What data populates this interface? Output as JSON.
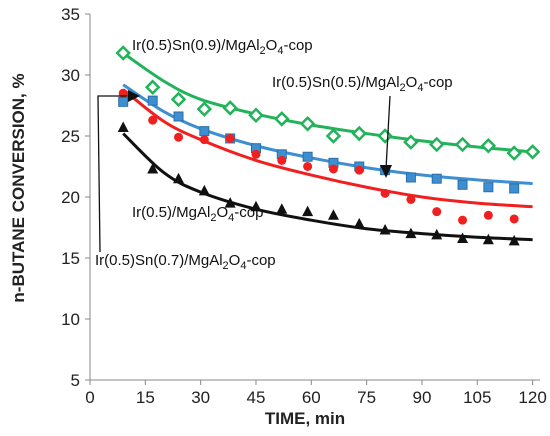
{
  "chart_data": {
    "type": "scatter",
    "xlabel": "TIME, min",
    "ylabel": "n-BUTANE CONVERSION, %",
    "xlim": [
      0,
      122
    ],
    "ylim": [
      5,
      35
    ],
    "x_ticks": [
      "0",
      "15",
      "30",
      "45",
      "60",
      "75",
      "90",
      "105",
      "120"
    ],
    "y_ticks": [
      "5",
      "10",
      "15",
      "20",
      "25",
      "30",
      "35"
    ],
    "grid": false,
    "series": [
      {
        "name": "Ir(0.5)Sn(0.9)/MgAl2O4-cop",
        "marker": "diamond",
        "color": "#22b35a",
        "x": [
          9,
          17,
          24,
          31,
          38,
          45,
          52,
          59,
          66,
          73,
          80,
          87,
          94,
          101,
          108,
          115,
          120
        ],
        "y": [
          31.8,
          29.0,
          28.0,
          27.2,
          27.3,
          26.7,
          26.4,
          26.0,
          25.0,
          25.2,
          25.0,
          24.5,
          24.3,
          24.3,
          24.2,
          23.6,
          23.7
        ],
        "fit": [
          [
            9,
            31.8
          ],
          [
            20,
            29.5
          ],
          [
            30,
            28.0
          ],
          [
            45,
            26.8
          ],
          [
            60,
            25.9
          ],
          [
            75,
            25.2
          ],
          [
            90,
            24.6
          ],
          [
            105,
            24.1
          ],
          [
            120,
            23.7
          ]
        ]
      },
      {
        "name": "Ir(0.5)Sn(0.5)/MgAl2O4-cop",
        "marker": "square",
        "color": "#3d8fd1",
        "x": [
          9,
          17,
          24,
          31,
          38,
          45,
          52,
          59,
          66,
          73,
          80,
          87,
          94,
          101,
          108,
          115
        ],
        "y": [
          27.8,
          27.9,
          26.6,
          25.4,
          24.8,
          24.0,
          23.5,
          23.3,
          22.8,
          22.5,
          22.2,
          21.6,
          21.5,
          21.0,
          20.8,
          20.7
        ],
        "fit": [
          [
            9,
            29.2
          ],
          [
            20,
            27.0
          ],
          [
            30,
            25.6
          ],
          [
            45,
            24.2
          ],
          [
            60,
            23.2
          ],
          [
            75,
            22.4
          ],
          [
            90,
            21.8
          ],
          [
            105,
            21.4
          ],
          [
            120,
            21.1
          ]
        ]
      },
      {
        "name": "Ir(0.5)/MgAl2O4-cop",
        "marker": "circle",
        "color": "#f02020",
        "x": [
          9,
          17,
          24,
          31,
          38,
          45,
          52,
          59,
          66,
          73,
          80,
          87,
          94,
          101,
          108,
          115
        ],
        "y": [
          28.5,
          26.3,
          24.9,
          24.7,
          24.8,
          23.5,
          23.0,
          22.5,
          22.3,
          22.2,
          20.3,
          19.8,
          18.8,
          18.1,
          18.5,
          18.2
        ],
        "fit": [
          [
            9,
            28.8
          ],
          [
            20,
            26.2
          ],
          [
            30,
            24.7
          ],
          [
            45,
            23.0
          ],
          [
            60,
            21.8
          ],
          [
            75,
            20.8
          ],
          [
            90,
            20.0
          ],
          [
            105,
            19.5
          ],
          [
            120,
            19.2
          ]
        ]
      },
      {
        "name": "Ir(0.5)Sn(0.7)/MgAl2O4-cop",
        "marker": "triangle",
        "color": "#111111",
        "x": [
          9,
          17,
          24,
          31,
          38,
          45,
          52,
          59,
          66,
          73,
          80,
          87,
          94,
          101,
          108,
          115
        ],
        "y": [
          25.7,
          22.3,
          21.5,
          20.5,
          19.5,
          19.2,
          19.0,
          18.8,
          18.5,
          17.8,
          17.3,
          17.0,
          16.9,
          16.6,
          16.5,
          16.4
        ],
        "fit": [
          [
            9,
            25.2
          ],
          [
            20,
            22.0
          ],
          [
            30,
            20.4
          ],
          [
            45,
            19.0
          ],
          [
            60,
            18.1
          ],
          [
            75,
            17.4
          ],
          [
            90,
            17.0
          ],
          [
            105,
            16.7
          ],
          [
            120,
            16.5
          ]
        ]
      }
    ],
    "annotations": [
      {
        "prefix": "Ir(0.5)Sn(0.9)/MgAl",
        "sub1": "2",
        "mid": "O",
        "sub2": "4",
        "suffix": "-cop"
      },
      {
        "prefix": "Ir(0.5)Sn(0.5)/MgAl",
        "sub1": "2",
        "mid": "O",
        "sub2": "4",
        "suffix": "-cop"
      },
      {
        "prefix": "Ir(0.5)/MgAl",
        "sub1": "2",
        "mid": "O",
        "sub2": "4",
        "suffix": "-cop"
      },
      {
        "prefix": "Ir(0.5)Sn(0.7)/MgAl",
        "sub1": "2",
        "mid": "O",
        "sub2": "4",
        "suffix": "-cop"
      }
    ]
  }
}
